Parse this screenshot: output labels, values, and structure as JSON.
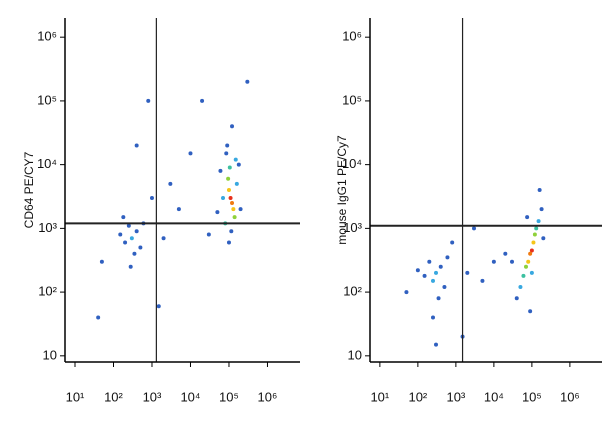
{
  "chart_data": [
    {
      "type": "scatter",
      "ylabel": "CD64 PE/CY7",
      "log_x": true,
      "log_y": true,
      "xlim": [
        5.5,
        7000000
      ],
      "ylim": [
        8,
        2000000
      ],
      "xticks": [
        {
          "value": 10,
          "label": "10¹"
        },
        {
          "value": 100,
          "label": "10²"
        },
        {
          "value": 1000,
          "label": "10³"
        },
        {
          "value": 10000,
          "label": "10⁴"
        },
        {
          "value": 100000,
          "label": "10⁵"
        },
        {
          "value": 1000000,
          "label": "10⁶"
        }
      ],
      "yticks": [
        10,
        {
          "value": 100,
          "label": "10²"
        },
        {
          "value": 1000,
          "label": "10³"
        },
        {
          "value": 10000,
          "label": "10⁴"
        },
        {
          "value": 100000,
          "label": "10⁵"
        },
        {
          "value": 1000000,
          "label": "10⁶"
        }
      ],
      "gate_x": 1300,
      "gate_y": 1200,
      "x": [
        110000,
        120000,
        100000,
        130000,
        95000,
        140000,
        105000,
        80000,
        150000,
        70000,
        160000,
        90000,
        60000,
        200000,
        115000,
        100000,
        120000,
        50000,
        180000,
        85000,
        300,
        400,
        200,
        250,
        500,
        150,
        350,
        600,
        280,
        180,
        1000,
        3000,
        5000,
        50,
        2000,
        400,
        800,
        20000,
        300000,
        40,
        1500,
        10000,
        30000
      ],
      "y": [
        3000,
        2500,
        4000,
        2000,
        6000,
        1500,
        9000,
        1200,
        12000,
        3000,
        5000,
        20000,
        8000,
        2000,
        900,
        600,
        40000,
        1800,
        10000,
        15000,
        700,
        900,
        600,
        1100,
        500,
        800,
        400,
        1200,
        250,
        1500,
        3000,
        5000,
        2000,
        300,
        700,
        20000,
        100000,
        100000,
        200000,
        40,
        60,
        15000,
        800
      ],
      "colors": [
        "#e8301c",
        "#f07a10",
        "#f5c518",
        "#f5c518",
        "#8fd13a",
        "#8fd13a",
        "#3cc0a0",
        "#3cc0a0",
        "#38a8e0",
        "#38a8e0",
        "#38a8e0",
        "#3060c0",
        "#3060c0",
        "#3060c0",
        "#3060c0",
        "#3060c0",
        "#3060c0",
        "#3060c0",
        "#3060c0",
        "#3060c0",
        "#38a8e0",
        "#3060c0",
        "#3060c0",
        "#3060c0",
        "#3060c0",
        "#3060c0",
        "#3060c0",
        "#3060c0",
        "#3060c0",
        "#3060c0",
        "#3060c0",
        "#3060c0",
        "#3060c0",
        "#3060c0",
        "#3060c0",
        "#3060c0",
        "#3060c0",
        "#3060c0",
        "#3060c0",
        "#3060c0",
        "#3060c0",
        "#3060c0",
        "#3060c0"
      ]
    },
    {
      "type": "scatter",
      "ylabel": "mouse IgG1 PE/Cy7",
      "log_x": true,
      "log_y": true,
      "xlim": [
        5.5,
        7000000
      ],
      "ylim": [
        8,
        2000000
      ],
      "xticks": [
        {
          "value": 10,
          "label": "10¹"
        },
        {
          "value": 100,
          "label": "10²"
        },
        {
          "value": 1000,
          "label": "10³"
        },
        {
          "value": 10000,
          "label": "10⁴"
        },
        {
          "value": 100000,
          "label": "10⁵"
        },
        {
          "value": 1000000,
          "label": "10⁶"
        }
      ],
      "yticks": [
        10,
        {
          "value": 100,
          "label": "10²"
        },
        {
          "value": 1000,
          "label": "10³"
        },
        {
          "value": 10000,
          "label": "10⁴"
        },
        {
          "value": 100000,
          "label": "10⁵"
        },
        {
          "value": 1000000,
          "label": "10⁶"
        }
      ],
      "gate_x": 1500,
      "gate_y": 1100,
      "x": [
        100000,
        90000,
        110000,
        80000,
        120000,
        70000,
        130000,
        60000,
        150000,
        50000,
        100000,
        180000,
        40000,
        200000,
        75000,
        160000,
        90000,
        30000,
        300,
        250,
        400,
        200,
        500,
        150,
        350,
        600,
        250,
        100,
        2000,
        5000,
        10000,
        1500,
        800,
        50,
        3000,
        20000,
        300
      ],
      "y": [
        450,
        400,
        600,
        300,
        800,
        250,
        1000,
        180,
        1300,
        120,
        200,
        2000,
        80,
        700,
        1500,
        4000,
        50,
        300,
        200,
        150,
        250,
        300,
        120,
        180,
        80,
        350,
        40,
        220,
        200,
        150,
        300,
        20,
        600,
        100,
        1000,
        400,
        15
      ],
      "colors": [
        "#e8301c",
        "#f07a10",
        "#f5c518",
        "#f5c518",
        "#8fd13a",
        "#8fd13a",
        "#3cc0a0",
        "#3cc0a0",
        "#38a8e0",
        "#38a8e0",
        "#38a8e0",
        "#3060c0",
        "#3060c0",
        "#3060c0",
        "#3060c0",
        "#3060c0",
        "#3060c0",
        "#3060c0",
        "#38a8e0",
        "#38a8e0",
        "#3060c0",
        "#3060c0",
        "#3060c0",
        "#3060c0",
        "#3060c0",
        "#3060c0",
        "#3060c0",
        "#3060c0",
        "#3060c0",
        "#3060c0",
        "#3060c0",
        "#3060c0",
        "#3060c0",
        "#3060c0",
        "#3060c0",
        "#3060c0",
        "#3060c0"
      ]
    }
  ]
}
